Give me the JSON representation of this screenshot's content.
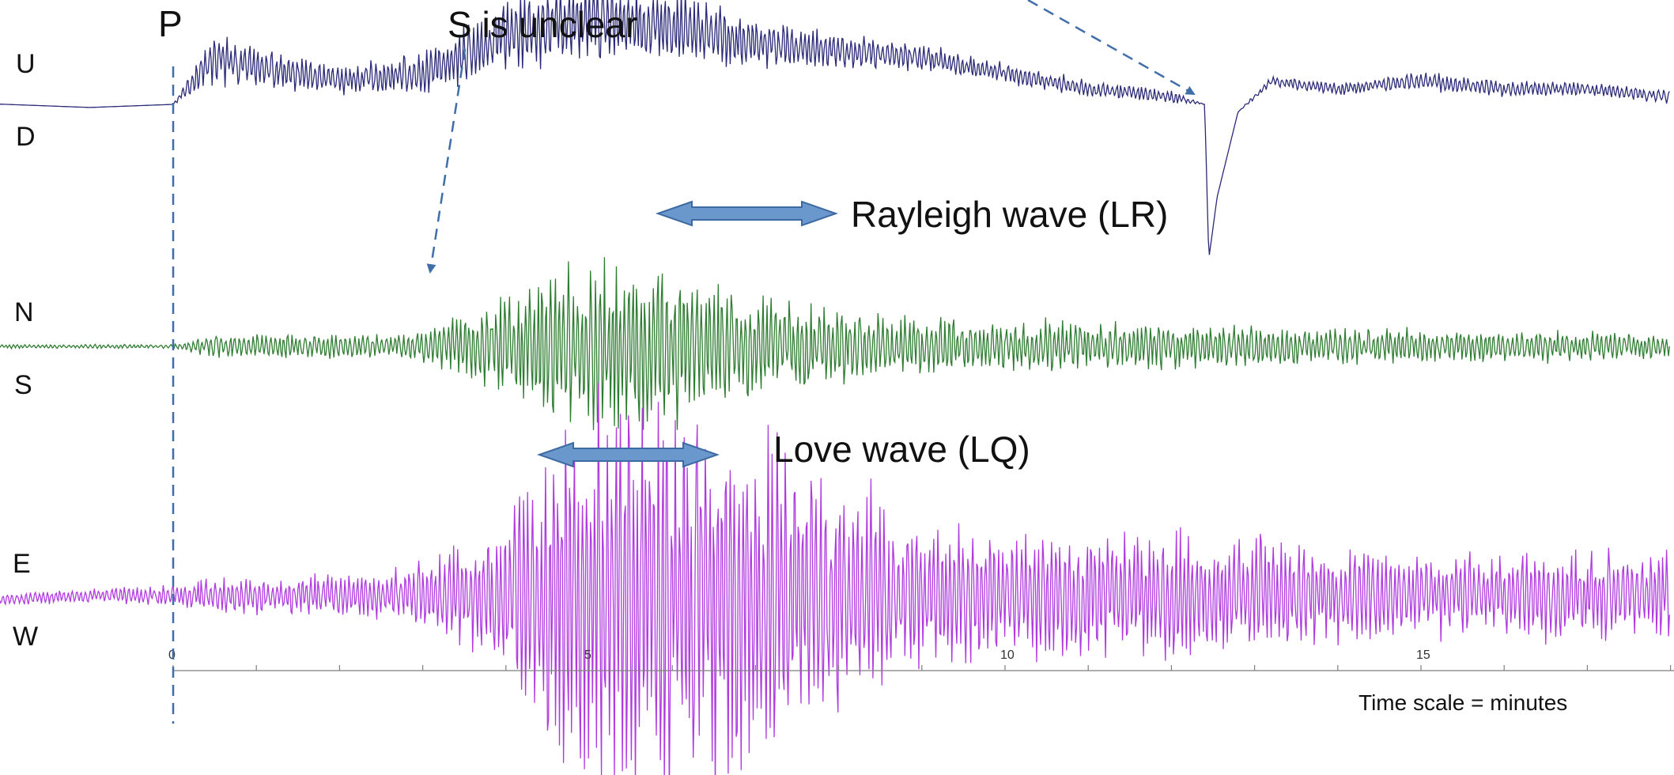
{
  "chart_data": {
    "type": "line",
    "x_unit": "minutes",
    "xlim": [
      -4.2,
      18.0
    ],
    "tick_labels": [
      "0",
      "5",
      "10",
      "15"
    ],
    "tick_values": [
      0,
      5,
      10,
      15
    ],
    "minor_tick_step": 1,
    "scale_note": "Time scale = minutes",
    "colors": {
      "vertical": "#2b2a78",
      "north_south": "#2f7d32",
      "east_west": "#b03adf",
      "marker": "#3f6ea8",
      "arrow_fill": "#6b98cc",
      "arrow_stroke": "#3d6aa3",
      "axis": "#7f7f7f"
    },
    "components": [
      {
        "key": "ud",
        "top_label": "U",
        "bottom_label": "D",
        "color": "#2b2a78",
        "rel_x": [
          -4.2,
          -3.0,
          -2.0,
          -1.0,
          0,
          0.5,
          1.0,
          2.0,
          3.0,
          4.0,
          5.0,
          6.0,
          7.0,
          8.0,
          9.0,
          10.0,
          11.0,
          12.0,
          12.4,
          12.45,
          12.55,
          12.8,
          13.2,
          14.0,
          15.0,
          16.0,
          17.0,
          18.0
        ],
        "rel_y": [
          0.0,
          0.02,
          0.0,
          -0.02,
          0.0,
          0.3,
          0.25,
          0.15,
          0.2,
          0.45,
          0.55,
          0.5,
          0.4,
          0.35,
          0.3,
          0.2,
          0.1,
          0.05,
          0.0,
          -1.0,
          -0.6,
          -0.05,
          0.15,
          0.1,
          0.15,
          0.1,
          0.1,
          0.05
        ],
        "noise": [
          0.0,
          0.0,
          0.0,
          0.0,
          0.0,
          0.16,
          0.12,
          0.08,
          0.12,
          0.2,
          0.22,
          0.2,
          0.14,
          0.1,
          0.08,
          0.06,
          0.05,
          0.04,
          0.0,
          0.0,
          0.0,
          0.0,
          0.03,
          0.04,
          0.05,
          0.05,
          0.04,
          0.04
        ]
      },
      {
        "key": "ns",
        "top_label": "N",
        "bottom_label": "S",
        "color": "#2f7d32",
        "rel_x": [
          -4.2,
          -3.0,
          -2.0,
          -1.0,
          0,
          0.5,
          1.0,
          2.0,
          2.8,
          3.3,
          4.0,
          4.5,
          5.0,
          5.5,
          6.0,
          6.5,
          7.0,
          8.0,
          9.0,
          10.0,
          11.0,
          12.0,
          13.0,
          14.0,
          15.0,
          16.0,
          17.0,
          18.0
        ],
        "rel_y": [
          0.0,
          0.0,
          0.0,
          0.0,
          0.0,
          0.0,
          0.0,
          0.0,
          0.0,
          0.0,
          0.0,
          0.0,
          0.0,
          0.0,
          0.0,
          0.0,
          0.0,
          0.0,
          0.0,
          0.0,
          0.0,
          0.0,
          0.0,
          0.0,
          0.0,
          0.0,
          0.0,
          0.0
        ],
        "noise": [
          0.02,
          0.02,
          0.02,
          0.02,
          0.02,
          0.12,
          0.12,
          0.12,
          0.12,
          0.25,
          0.5,
          0.75,
          0.8,
          0.85,
          0.75,
          0.6,
          0.5,
          0.4,
          0.3,
          0.25,
          0.25,
          0.22,
          0.2,
          0.17,
          0.17,
          0.15,
          0.15,
          0.12
        ]
      },
      {
        "key": "ew",
        "top_label": "E",
        "bottom_label": "W",
        "color": "#b03adf",
        "rel_x": [
          -4.2,
          -3.0,
          -2.0,
          -1.0,
          0,
          0.5,
          1.0,
          2.0,
          2.8,
          3.5,
          4.0,
          4.5,
          5.0,
          5.5,
          6.0,
          6.5,
          7.0,
          8.0,
          9.0,
          10.0,
          11.0,
          12.0,
          13.0,
          14.0,
          15.0,
          16.0,
          17.0,
          18.0
        ],
        "rel_y": [
          0.0,
          0.02,
          -0.02,
          0.0,
          0.0,
          0.0,
          0.0,
          0.0,
          0.0,
          0.0,
          0.0,
          0.0,
          0.0,
          0.0,
          0.0,
          0.0,
          0.0,
          0.0,
          0.0,
          0.0,
          0.0,
          0.0,
          0.0,
          0.0,
          0.0,
          0.0,
          0.0,
          0.0
        ],
        "noise": [
          0.03,
          0.03,
          0.03,
          0.03,
          0.05,
          0.08,
          0.08,
          0.1,
          0.12,
          0.25,
          0.4,
          0.75,
          0.95,
          0.98,
          0.95,
          0.9,
          0.75,
          0.55,
          0.35,
          0.3,
          0.28,
          0.3,
          0.28,
          0.22,
          0.2,
          0.2,
          0.22,
          0.2
        ]
      }
    ],
    "annotations": {
      "p_label": "P",
      "s_label": "S is unclear",
      "rayleigh_label": "Rayleigh wave (LR)",
      "love_label": "Love wave (LQ)"
    }
  }
}
